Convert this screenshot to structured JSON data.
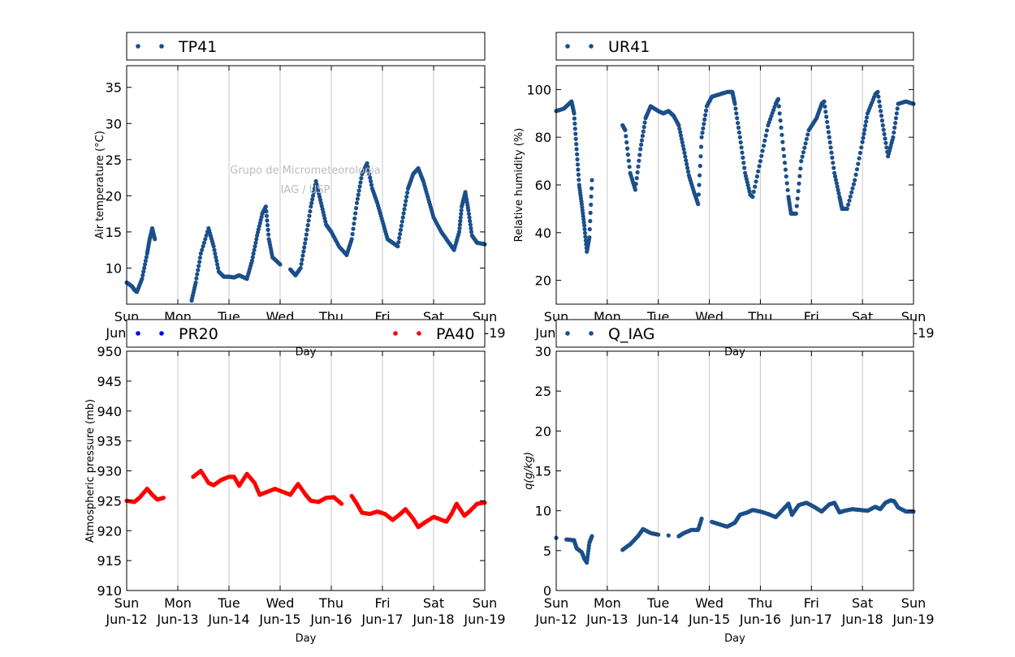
{
  "x_axis": {
    "label": "Day",
    "ticks": [
      {
        "day": 0,
        "line1": "Sun",
        "line2": "Jun-12"
      },
      {
        "day": 1,
        "line1": "Mon",
        "line2": "Jun-13"
      },
      {
        "day": 2,
        "line1": "Tue",
        "line2": "Jun-14"
      },
      {
        "day": 3,
        "line1": "Wed",
        "line2": "Jun-15"
      },
      {
        "day": 4,
        "line1": "Thu",
        "line2": "Jun-16"
      },
      {
        "day": 5,
        "line1": "Fri",
        "line2": "Jun-17"
      },
      {
        "day": 6,
        "line1": "Sat",
        "line2": "Jun-18"
      },
      {
        "day": 7,
        "line1": "Sun",
        "line2": "Jun-19"
      }
    ]
  },
  "watermark": {
    "line1": "Grupo de Micrometeorologia",
    "line2": "IAG / USP"
  },
  "colors": {
    "blue_series": "#1b4f8a",
    "pr20": "#0000ff",
    "pa40": "#ff0000",
    "grid": "#c8c8c8"
  },
  "chart_data": [
    {
      "id": "temperature",
      "type": "scatter",
      "ylabel": "Air temperature (°C)",
      "ylim": [
        5,
        38
      ],
      "yticks": [
        10,
        15,
        20,
        25,
        30,
        35
      ],
      "xlim": [
        0,
        7
      ],
      "grid": "vertical",
      "legend": "top",
      "series": [
        {
          "name": "TP41",
          "color": "#1b4f8a",
          "points": [
            [
              0,
              8.0
            ],
            [
              0.1,
              7.5
            ],
            [
              0.15,
              7.0
            ],
            [
              0.2,
              6.7
            ],
            [
              0.3,
              8.5
            ],
            [
              0.4,
              12.0
            ],
            [
              0.45,
              14.0
            ],
            [
              0.5,
              15.5
            ],
            [
              0.55,
              14.0
            ],
            [
              1.27,
              5.5
            ],
            [
              1.35,
              8.0
            ],
            [
              1.45,
              12.0
            ],
            [
              1.6,
              15.5
            ],
            [
              1.7,
              13.0
            ],
            [
              1.8,
              9.5
            ],
            [
              1.9,
              8.8
            ],
            [
              2.0,
              8.8
            ],
            [
              2.1,
              8.7
            ],
            [
              2.2,
              9.0
            ],
            [
              2.35,
              8.5
            ],
            [
              2.45,
              11.0
            ],
            [
              2.55,
              14.5
            ],
            [
              2.65,
              17.5
            ],
            [
              2.72,
              18.5
            ],
            [
              2.78,
              14.0
            ],
            [
              2.85,
              11.5
            ],
            [
              3.0,
              10.5
            ],
            [
              3.2,
              9.8
            ],
            [
              3.3,
              9.0
            ],
            [
              3.4,
              10.0
            ],
            [
              3.5,
              14.0
            ],
            [
              3.6,
              18.5
            ],
            [
              3.7,
              22.0
            ],
            [
              3.8,
              19.0
            ],
            [
              3.9,
              16.0
            ],
            [
              4.0,
              15.0
            ],
            [
              4.15,
              13.0
            ],
            [
              4.3,
              11.8
            ],
            [
              4.4,
              14.0
            ],
            [
              4.5,
              19.0
            ],
            [
              4.6,
              23.0
            ],
            [
              4.7,
              24.5
            ],
            [
              4.8,
              21.0
            ],
            [
              4.9,
              19.0
            ],
            [
              5.0,
              16.5
            ],
            [
              5.1,
              14.0
            ],
            [
              5.2,
              13.5
            ],
            [
              5.3,
              13.0
            ],
            [
              5.4,
              17.0
            ],
            [
              5.5,
              21.0
            ],
            [
              5.6,
              23.0
            ],
            [
              5.7,
              23.8
            ],
            [
              5.8,
              22.0
            ],
            [
              5.9,
              19.5
            ],
            [
              6.0,
              17.0
            ],
            [
              6.15,
              15.0
            ],
            [
              6.3,
              13.5
            ],
            [
              6.4,
              12.5
            ],
            [
              6.5,
              15.0
            ],
            [
              6.55,
              18.5
            ],
            [
              6.62,
              20.5
            ],
            [
              6.68,
              18.0
            ],
            [
              6.75,
              14.5
            ],
            [
              6.85,
              13.5
            ],
            [
              7.0,
              13.3
            ]
          ]
        }
      ]
    },
    {
      "id": "humidity",
      "type": "scatter",
      "ylabel": "Relative humidity (%)",
      "ylim": [
        10,
        110
      ],
      "yticks": [
        20,
        40,
        60,
        80,
        100
      ],
      "xlim": [
        0,
        7
      ],
      "grid": "vertical",
      "legend": "top",
      "series": [
        {
          "name": "UR41",
          "color": "#1b4f8a",
          "points": [
            [
              0,
              91
            ],
            [
              0.15,
              92
            ],
            [
              0.25,
              94
            ],
            [
              0.3,
              95
            ],
            [
              0.35,
              90
            ],
            [
              0.4,
              75
            ],
            [
              0.45,
              60
            ],
            [
              0.5,
              52
            ],
            [
              0.55,
              43
            ],
            [
              0.6,
              32
            ],
            [
              0.65,
              38
            ],
            [
              0.7,
              62
            ],
            [
              1.3,
              85
            ],
            [
              1.35,
              83
            ],
            [
              1.45,
              65
            ],
            [
              1.55,
              58
            ],
            [
              1.65,
              75
            ],
            [
              1.75,
              88
            ],
            [
              1.85,
              93
            ],
            [
              2.0,
              91
            ],
            [
              2.1,
              90
            ],
            [
              2.2,
              91
            ],
            [
              2.3,
              89
            ],
            [
              2.4,
              85
            ],
            [
              2.5,
              75
            ],
            [
              2.6,
              64
            ],
            [
              2.7,
              57
            ],
            [
              2.78,
              52
            ],
            [
              2.85,
              80
            ],
            [
              2.95,
              93
            ],
            [
              3.05,
              97
            ],
            [
              3.2,
              98
            ],
            [
              3.35,
              99
            ],
            [
              3.45,
              99
            ],
            [
              3.5,
              94
            ],
            [
              3.6,
              80
            ],
            [
              3.7,
              65
            ],
            [
              3.8,
              56
            ],
            [
              3.85,
              55
            ],
            [
              4.0,
              70
            ],
            [
              4.15,
              85
            ],
            [
              4.3,
              94
            ],
            [
              4.35,
              96
            ],
            [
              4.45,
              75
            ],
            [
              4.55,
              55
            ],
            [
              4.6,
              48
            ],
            [
              4.7,
              48
            ],
            [
              4.8,
              70
            ],
            [
              4.95,
              83
            ],
            [
              5.1,
              88
            ],
            [
              5.2,
              94
            ],
            [
              5.25,
              95
            ],
            [
              5.35,
              80
            ],
            [
              5.45,
              65
            ],
            [
              5.55,
              55
            ],
            [
              5.6,
              50
            ],
            [
              5.7,
              50
            ],
            [
              5.85,
              62
            ],
            [
              6.0,
              78
            ],
            [
              6.1,
              90
            ],
            [
              6.25,
              98
            ],
            [
              6.3,
              99
            ],
            [
              6.4,
              85
            ],
            [
              6.5,
              72
            ],
            [
              6.6,
              80
            ],
            [
              6.7,
              94
            ],
            [
              6.85,
              95
            ],
            [
              7.0,
              94
            ]
          ]
        }
      ]
    },
    {
      "id": "pressure",
      "type": "scatter",
      "ylabel": "Atmospheric pressure (mb)",
      "ylim": [
        910,
        950
      ],
      "yticks": [
        910,
        915,
        920,
        925,
        930,
        935,
        940,
        945,
        950
      ],
      "xlim": [
        0,
        7
      ],
      "grid": "vertical",
      "legend": "top",
      "series": [
        {
          "name": "PR20",
          "color": "#0000ff",
          "points": []
        },
        {
          "name": "PA40",
          "color": "#ff0000",
          "points": [
            [
              0,
              925
            ],
            [
              0.15,
              924.8
            ],
            [
              0.25,
              925.5
            ],
            [
              0.4,
              927
            ],
            [
              0.5,
              926
            ],
            [
              0.6,
              925.2
            ],
            [
              0.72,
              925.5
            ],
            [
              1.3,
              929
            ],
            [
              1.45,
              930
            ],
            [
              1.6,
              928
            ],
            [
              1.7,
              927.6
            ],
            [
              1.85,
              928.5
            ],
            [
              2.0,
              929
            ],
            [
              2.1,
              929
            ],
            [
              2.2,
              927.5
            ],
            [
              2.35,
              929.5
            ],
            [
              2.5,
              928
            ],
            [
              2.6,
              926
            ],
            [
              2.75,
              926.5
            ],
            [
              2.9,
              927
            ],
            [
              3.05,
              926.5
            ],
            [
              3.2,
              926
            ],
            [
              3.35,
              927.8
            ],
            [
              3.5,
              926
            ],
            [
              3.6,
              925
            ],
            [
              3.75,
              924.8
            ],
            [
              3.9,
              925.5
            ],
            [
              4.05,
              925.6
            ],
            [
              4.2,
              924.5
            ],
            [
              4.4,
              925.8
            ],
            [
              4.5,
              924.5
            ],
            [
              4.6,
              923
            ],
            [
              4.75,
              922.8
            ],
            [
              4.9,
              923.2
            ],
            [
              5.05,
              922.8
            ],
            [
              5.2,
              921.8
            ],
            [
              5.35,
              922.8
            ],
            [
              5.45,
              923.6
            ],
            [
              5.6,
              922
            ],
            [
              5.7,
              920.6
            ],
            [
              5.85,
              921.5
            ],
            [
              6.0,
              922.3
            ],
            [
              6.1,
              922
            ],
            [
              6.25,
              921.5
            ],
            [
              6.35,
              922.8
            ],
            [
              6.45,
              924.5
            ],
            [
              6.6,
              922.5
            ],
            [
              6.7,
              923.2
            ],
            [
              6.85,
              924.5
            ],
            [
              7.0,
              924.7
            ]
          ]
        }
      ]
    },
    {
      "id": "specific_humidity",
      "type": "scatter",
      "ylabel": "q(g/kg)",
      "ylim": [
        0,
        30
      ],
      "yticks": [
        0,
        5,
        10,
        15,
        20,
        25,
        30
      ],
      "xlim": [
        0,
        7
      ],
      "grid": "vertical",
      "legend": "top",
      "series": [
        {
          "name": "Q_IAG",
          "color": "#1b4f8a",
          "points": [
            [
              0,
              6.6
            ],
            [
              0.2,
              6.4
            ],
            [
              0.35,
              6.3
            ],
            [
              0.4,
              5.3
            ],
            [
              0.5,
              4.8
            ],
            [
              0.55,
              4.0
            ],
            [
              0.6,
              3.5
            ],
            [
              0.65,
              6.0
            ],
            [
              0.7,
              6.8
            ],
            [
              1.3,
              5.1
            ],
            [
              1.45,
              5.8
            ],
            [
              1.6,
              6.8
            ],
            [
              1.7,
              7.7
            ],
            [
              1.85,
              7.2
            ],
            [
              2.0,
              7.0
            ],
            [
              2.2,
              6.9
            ],
            [
              2.4,
              6.8
            ],
            [
              2.5,
              7.2
            ],
            [
              2.65,
              7.6
            ],
            [
              2.78,
              7.6
            ],
            [
              2.85,
              9.0
            ],
            [
              3.05,
              8.6
            ],
            [
              3.2,
              8.3
            ],
            [
              3.35,
              8.0
            ],
            [
              3.5,
              8.5
            ],
            [
              3.6,
              9.5
            ],
            [
              3.75,
              9.8
            ],
            [
              3.85,
              10.1
            ],
            [
              4.0,
              9.9
            ],
            [
              4.15,
              9.6
            ],
            [
              4.3,
              9.2
            ],
            [
              4.45,
              10.2
            ],
            [
              4.55,
              10.9
            ],
            [
              4.62,
              9.5
            ],
            [
              4.75,
              10.7
            ],
            [
              4.9,
              11.0
            ],
            [
              5.05,
              10.5
            ],
            [
              5.2,
              9.9
            ],
            [
              5.35,
              10.8
            ],
            [
              5.45,
              11.0
            ],
            [
              5.55,
              9.8
            ],
            [
              5.65,
              10.0
            ],
            [
              5.8,
              10.2
            ],
            [
              5.95,
              10.1
            ],
            [
              6.1,
              10.0
            ],
            [
              6.25,
              10.5
            ],
            [
              6.35,
              10.2
            ],
            [
              6.45,
              11.0
            ],
            [
              6.55,
              11.3
            ],
            [
              6.62,
              11.2
            ],
            [
              6.7,
              10.4
            ],
            [
              6.85,
              9.9
            ],
            [
              7.0,
              9.9
            ]
          ]
        }
      ]
    }
  ]
}
